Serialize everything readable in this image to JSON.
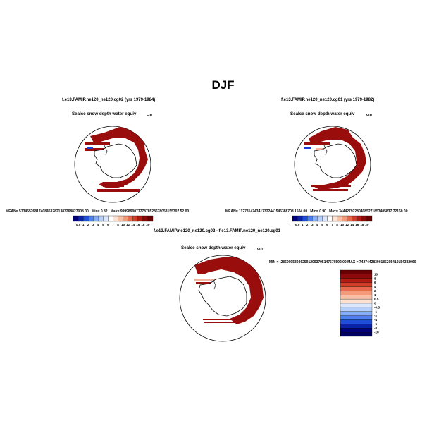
{
  "title": "DJF",
  "panels": [
    {
      "case": "f.e13.FAMIP.ne120_ne120.cg02 (yrs 1979-1984)",
      "variable": "SeaIce snow depth water equiv",
      "units": "cm",
      "stats": {
        "mean_label": "MEAN=",
        "mean": "573455268174084532821383268827008.00",
        "min_label": "Min=",
        "min": "0.82",
        "max_label": "Max=",
        "max": "999989007777878528678053155307 52.00"
      }
    },
    {
      "case": "f.e13.FAMIP.ne120_ne120.cg01 (yrs 1979-1982)",
      "variable": "SeaIce snow depth water equiv",
      "units": "cm",
      "stats": {
        "mean_label": "MEAN=",
        "mean": "1127314743417322441545388708 1504.00",
        "min_label": "Min=",
        "min": "0.90",
        "max_label": "Max=",
        "max": "344427922804085271853405837 72160.00"
      }
    }
  ],
  "diff_panel": {
    "case": "f.e13.FAMIP.ne120_ne120.cg02 - f.e13.FAMIP.ne120_ne120.cg01",
    "variable": "SeaIce snow depth water equiv",
    "units": "cm",
    "minmax": "MIN = -2850095394625912093795147576592.00  MAX = 74274428390185205419154332960"
  },
  "colors": {
    "ice_dark_red": "#990d0d",
    "ice_red": "#b31a1a",
    "white": "#ffffff",
    "light_red": "#f2b5a0",
    "blue": "#1a3bd6"
  },
  "chart_data": [
    {
      "type": "colorbar",
      "orientation": "horizontal",
      "labels": [
        "0.5",
        "1",
        "2",
        "3",
        "4",
        "5",
        "6",
        "7",
        "8",
        "10",
        "12",
        "14",
        "16",
        "18",
        "20"
      ],
      "colors": [
        "#00007f",
        "#0a22a8",
        "#1f4fd9",
        "#4f80f2",
        "#86aef8",
        "#b6cffb",
        "#dbe7fc",
        "#ffffff",
        "#fde2d2",
        "#f9bfa4",
        "#f39a78",
        "#e86a4c",
        "#d23d2a",
        "#b21b13",
        "#8d0a0a",
        "#6a0000"
      ]
    },
    {
      "type": "colorbar",
      "orientation": "vertical",
      "labels": [
        "10",
        "8",
        "6",
        "4",
        "2",
        "1",
        "0.5",
        "0",
        "-0.5",
        "-1",
        "-2",
        "-4",
        "-6",
        "-8",
        "-10"
      ],
      "colors": [
        "#6a0000",
        "#8d0a0a",
        "#b21b13",
        "#d23d2a",
        "#e86a4c",
        "#f39a78",
        "#f9bfa4",
        "#fde2d2",
        "#dbe7fc",
        "#b6cffb",
        "#86aef8",
        "#4f80f2",
        "#1f4fd9",
        "#0a22a8",
        "#00007f",
        "#000060"
      ]
    }
  ]
}
